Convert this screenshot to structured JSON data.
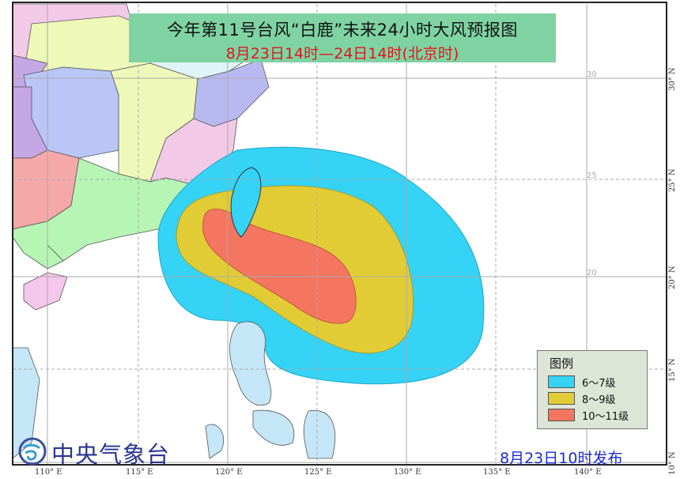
{
  "title": {
    "main": "今年第11号台风“白鹿”未来24小时大风预报图",
    "period": "8月23日14时—24日14时(北京时)"
  },
  "legend": {
    "title": "图例",
    "items": [
      {
        "label": "6～7级",
        "color": "#35d3f5"
      },
      {
        "label": "8～9级",
        "color": "#e2cc35"
      },
      {
        "label": "10～11级",
        "color": "#f47660"
      }
    ]
  },
  "publisher": {
    "name": "中央气象台",
    "logo_icon": "nmc-logo-icon"
  },
  "issue_time": "8月23日10时发布",
  "axes": {
    "longitude_labels": [
      "110° E",
      "115° E",
      "120° E",
      "125° E",
      "130° E",
      "135° E",
      "140° E"
    ],
    "latitude_labels": [
      "30° N",
      "25° N",
      "20° N",
      "15° N",
      "10° N"
    ],
    "inner_latitude_labels": [
      "30",
      "25",
      "20"
    ]
  },
  "colors": {
    "title_bg": "#7fd3a3",
    "title_red": "#e0161b",
    "issue_blue": "#1a2bd6",
    "sea": "#ffffff",
    "philippines": "#c5e6f7"
  }
}
